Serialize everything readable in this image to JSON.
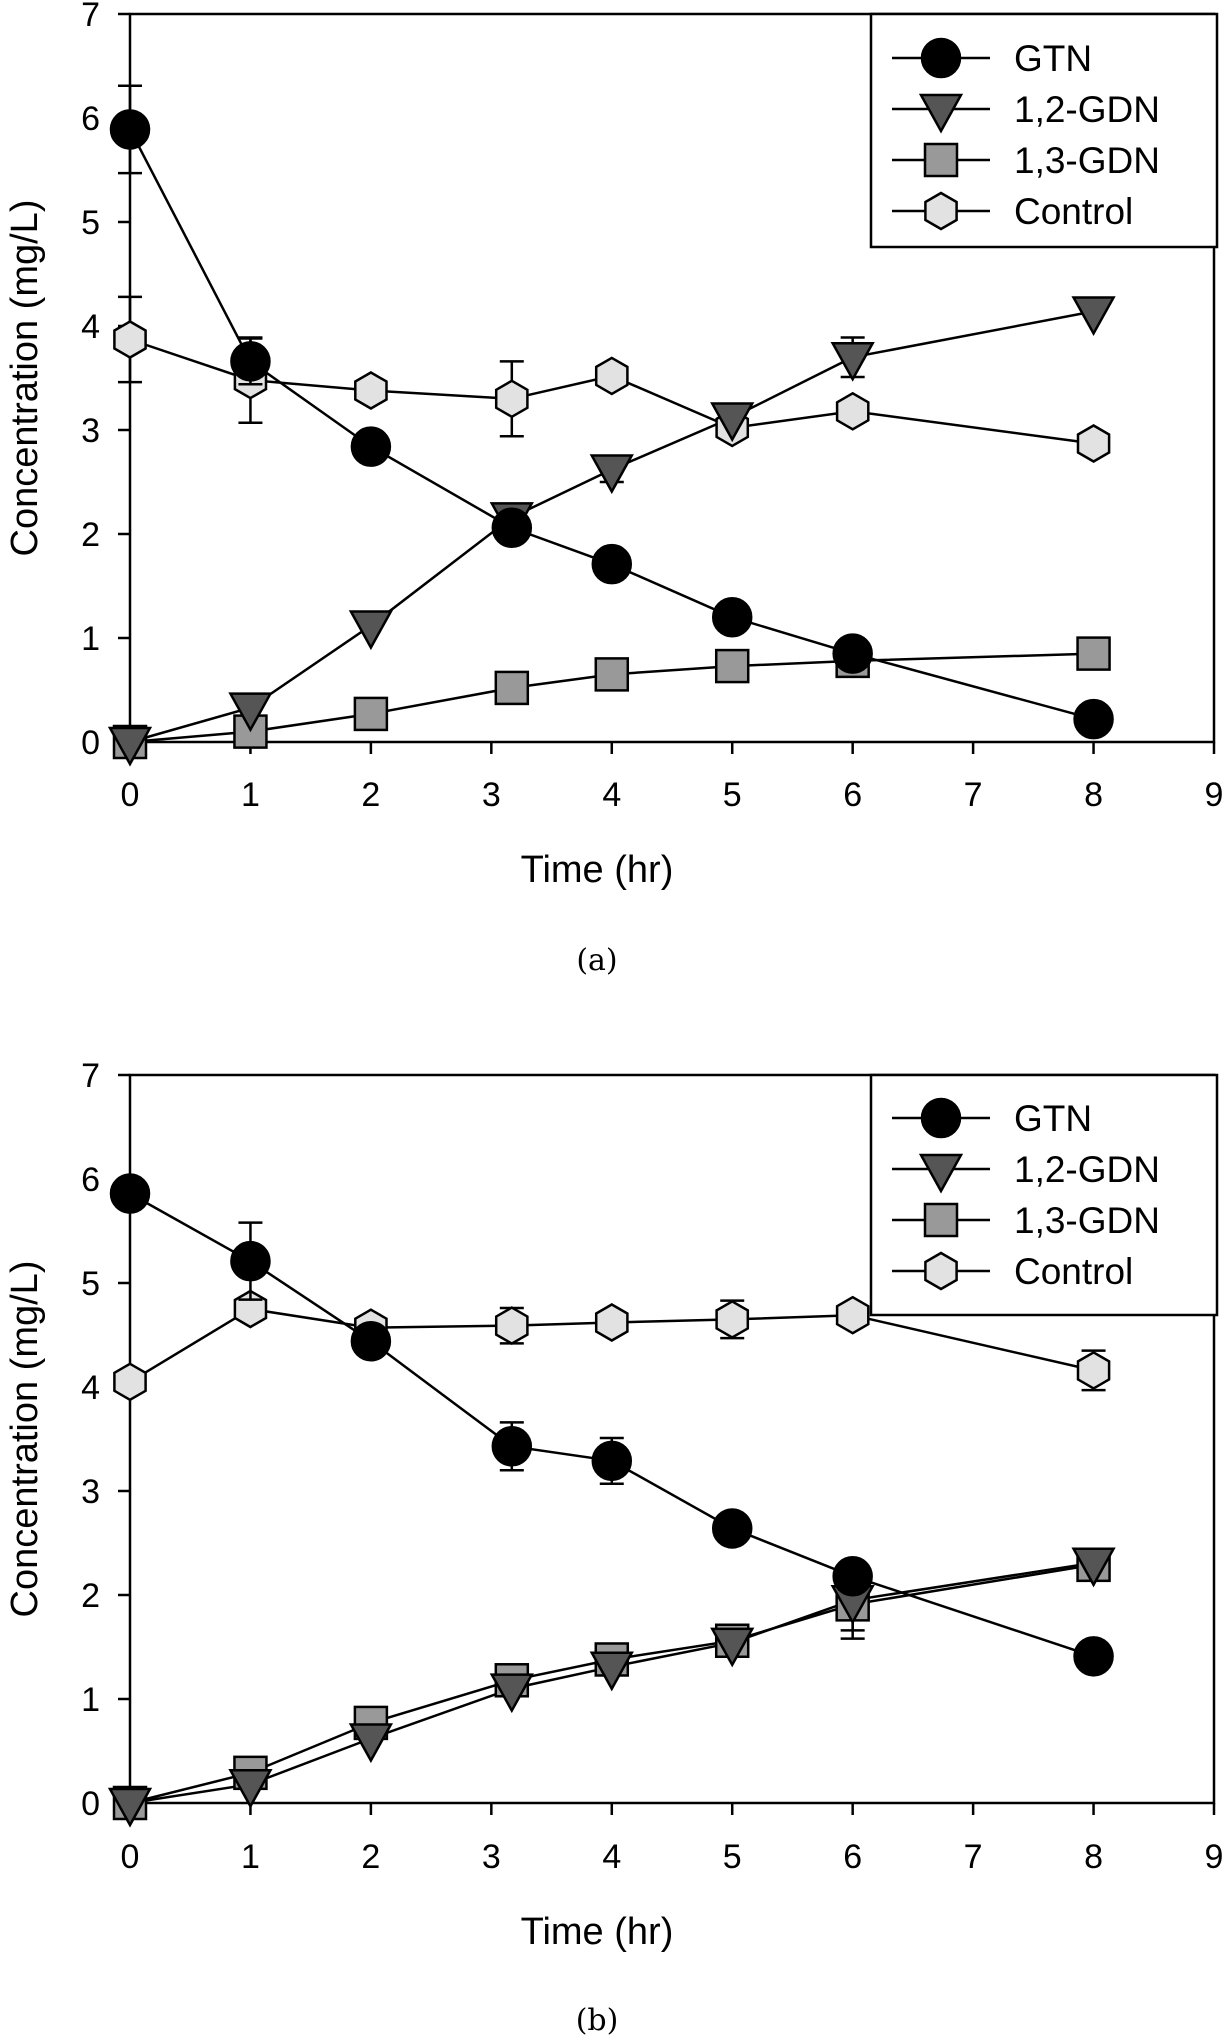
{
  "figure": {
    "panels": [
      "(a)",
      "(b)"
    ]
  },
  "colors": {
    "GTN": "#000000",
    "1,2-GDN": "#555555",
    "1,3-GDN": "#999999",
    "Control": "#e2e2e2",
    "line": "#000000"
  },
  "chart_data": [
    {
      "type": "line",
      "panel": "(a)",
      "title": "",
      "caption": "(a)",
      "xlabel": "Time (hr)",
      "ylabel": "Concentration (mg/L)",
      "xlim": [
        0,
        9
      ],
      "ylim": [
        0,
        7
      ],
      "xticks": [
        "0",
        "1",
        "2",
        "3",
        "4",
        "5",
        "6",
        "7",
        "8",
        "9"
      ],
      "yticks": [
        "0",
        "1",
        "2",
        "3",
        "4",
        "5",
        "6",
        "7"
      ],
      "grid": false,
      "legend_position": "top-right",
      "series": [
        {
          "name": "GTN",
          "marker": "circle",
          "x": [
            0,
            1,
            2,
            3.17,
            4,
            5,
            6,
            8
          ],
          "y": [
            5.89,
            3.66,
            2.84,
            2.06,
            1.71,
            1.2,
            0.85,
            0.22
          ],
          "err": [
            0.42,
            0.22,
            0,
            0,
            0,
            0,
            0,
            0
          ]
        },
        {
          "name": "1,2-GDN",
          "marker": "triangle-down",
          "x": [
            0,
            1,
            2,
            3.17,
            4,
            5,
            6,
            8
          ],
          "y": [
            0.0,
            0.33,
            1.12,
            2.16,
            2.62,
            3.12,
            3.7,
            4.14
          ],
          "err": [
            0,
            0,
            0,
            0,
            0.12,
            0,
            0.19,
            0
          ]
        },
        {
          "name": "1,3-GDN",
          "marker": "square",
          "x": [
            0,
            1,
            2,
            3.17,
            4,
            5,
            6,
            8
          ],
          "y": [
            0.0,
            0.1,
            0.27,
            0.52,
            0.65,
            0.73,
            0.78,
            0.85
          ],
          "err": [
            0,
            0,
            0,
            0,
            0,
            0,
            0,
            0
          ]
        },
        {
          "name": "Control",
          "marker": "hexagon",
          "x": [
            0,
            1,
            2,
            3.17,
            4,
            5,
            6,
            8
          ],
          "y": [
            3.87,
            3.48,
            3.38,
            3.3,
            3.52,
            3.02,
            3.18,
            2.87
          ],
          "err": [
            0.41,
            0.41,
            0,
            0.36,
            0,
            0,
            0,
            0
          ]
        }
      ]
    },
    {
      "type": "line",
      "panel": "(b)",
      "title": "",
      "caption": "(b)",
      "xlabel": "Time (hr)",
      "ylabel": "Concentration (mg/L)",
      "xlim": [
        0,
        9
      ],
      "ylim": [
        0,
        7
      ],
      "xticks": [
        "0",
        "1",
        "2",
        "3",
        "4",
        "5",
        "6",
        "7",
        "8",
        "9"
      ],
      "yticks": [
        "0",
        "1",
        "2",
        "3",
        "4",
        "5",
        "6",
        "7"
      ],
      "grid": false,
      "legend_position": "top-right",
      "series": [
        {
          "name": "GTN",
          "marker": "circle",
          "x": [
            0,
            1,
            2,
            3.17,
            4,
            5,
            6,
            8
          ],
          "y": [
            5.86,
            5.21,
            4.44,
            3.43,
            3.29,
            2.64,
            2.18,
            1.41
          ],
          "err": [
            0,
            0.37,
            0,
            0.23,
            0.22,
            0,
            0,
            0
          ]
        },
        {
          "name": "1,2-GDN",
          "marker": "triangle-down",
          "x": [
            0,
            1,
            2,
            3.17,
            4,
            5,
            6,
            8
          ],
          "y": [
            0.0,
            0.18,
            0.62,
            1.1,
            1.31,
            1.54,
            1.95,
            2.31
          ],
          "err": [
            0,
            0,
            0,
            0,
            0,
            0,
            0.37,
            0
          ]
        },
        {
          "name": "1,3-GDN",
          "marker": "square",
          "x": [
            0,
            1,
            2,
            3.17,
            4,
            5,
            6,
            8
          ],
          "y": [
            0.0,
            0.29,
            0.77,
            1.18,
            1.38,
            1.56,
            1.91,
            2.29
          ],
          "err": [
            0,
            0,
            0,
            0,
            0,
            0,
            0.25,
            0
          ]
        },
        {
          "name": "Control",
          "marker": "hexagon",
          "x": [
            0,
            1,
            2,
            3.17,
            4,
            5,
            6,
            8
          ],
          "y": [
            4.05,
            4.75,
            4.57,
            4.59,
            4.62,
            4.65,
            4.69,
            4.16
          ],
          "err": [
            0,
            0.08,
            0,
            0.17,
            0,
            0.18,
            0.06,
            0.19
          ]
        }
      ]
    }
  ]
}
